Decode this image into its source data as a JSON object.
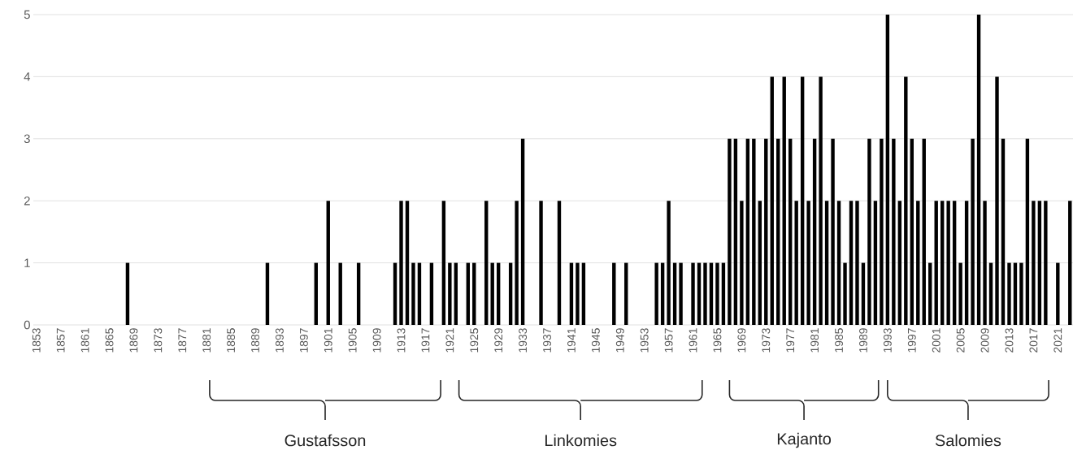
{
  "chart_data": {
    "type": "bar",
    "color": "#000000",
    "x": [
      1853,
      1854,
      1855,
      1856,
      1857,
      1858,
      1859,
      1860,
      1861,
      1862,
      1863,
      1864,
      1865,
      1866,
      1867,
      1868,
      1869,
      1870,
      1871,
      1872,
      1873,
      1874,
      1875,
      1876,
      1877,
      1878,
      1879,
      1880,
      1881,
      1882,
      1883,
      1884,
      1885,
      1886,
      1887,
      1888,
      1889,
      1890,
      1891,
      1892,
      1893,
      1894,
      1895,
      1896,
      1897,
      1898,
      1899,
      1900,
      1901,
      1902,
      1903,
      1904,
      1905,
      1906,
      1907,
      1908,
      1909,
      1910,
      1911,
      1912,
      1913,
      1914,
      1915,
      1916,
      1917,
      1918,
      1919,
      1920,
      1921,
      1922,
      1923,
      1924,
      1925,
      1926,
      1927,
      1928,
      1929,
      1930,
      1931,
      1932,
      1933,
      1934,
      1935,
      1936,
      1937,
      1938,
      1939,
      1940,
      1941,
      1942,
      1943,
      1944,
      1945,
      1946,
      1947,
      1948,
      1949,
      1950,
      1951,
      1952,
      1953,
      1954,
      1955,
      1956,
      1957,
      1958,
      1959,
      1960,
      1961,
      1962,
      1963,
      1964,
      1965,
      1966,
      1967,
      1968,
      1969,
      1970,
      1971,
      1972,
      1973,
      1974,
      1975,
      1976,
      1977,
      1978,
      1979,
      1980,
      1981,
      1982,
      1983,
      1984,
      1985,
      1986,
      1987,
      1988,
      1989,
      1990,
      1991,
      1992,
      1993,
      1994,
      1995,
      1996,
      1997,
      1998,
      1999,
      2000,
      2001,
      2002,
      2003,
      2004,
      2005,
      2006,
      2007,
      2008,
      2009,
      2010,
      2011,
      2012,
      2013,
      2014,
      2015,
      2016,
      2017,
      2018,
      2019,
      2020,
      2021,
      2022,
      2023
    ],
    "values": [
      0,
      0,
      0,
      0,
      0,
      0,
      0,
      0,
      0,
      0,
      0,
      0,
      0,
      0,
      0,
      1,
      0,
      0,
      0,
      0,
      0,
      0,
      0,
      0,
      0,
      0,
      0,
      0,
      0,
      0,
      0,
      0,
      0,
      0,
      0,
      0,
      0,
      0,
      1,
      0,
      0,
      0,
      0,
      0,
      0,
      0,
      1,
      0,
      2,
      0,
      1,
      0,
      0,
      1,
      0,
      0,
      0,
      0,
      0,
      1,
      2,
      2,
      1,
      1,
      0,
      1,
      0,
      2,
      1,
      1,
      0,
      1,
      1,
      0,
      2,
      1,
      1,
      0,
      1,
      2,
      3,
      0,
      0,
      2,
      0,
      0,
      2,
      0,
      1,
      1,
      1,
      0,
      0,
      0,
      0,
      1,
      0,
      1,
      0,
      0,
      0,
      0,
      1,
      1,
      2,
      1,
      1,
      0,
      1,
      1,
      1,
      1,
      1,
      1,
      3,
      3,
      2,
      3,
      3,
      2,
      3,
      4,
      3,
      4,
      3,
      2,
      4,
      2,
      3,
      4,
      2,
      3,
      2,
      1,
      2,
      2,
      1,
      3,
      2,
      3,
      5,
      3,
      2,
      4,
      3,
      2,
      3,
      1,
      2,
      2,
      2,
      2,
      1,
      2,
      3,
      5,
      2,
      1,
      4,
      3,
      1,
      1,
      1,
      3,
      2,
      2,
      2,
      0,
      1,
      0,
      2
    ],
    "xlim": [
      1852.5,
      2023.5
    ],
    "xticks": [
      1853,
      1857,
      1861,
      1865,
      1869,
      1873,
      1877,
      1881,
      1885,
      1889,
      1893,
      1897,
      1901,
      1905,
      1909,
      1913,
      1917,
      1921,
      1925,
      1929,
      1933,
      1937,
      1941,
      1945,
      1949,
      1953,
      1957,
      1961,
      1965,
      1969,
      1973,
      1977,
      1981,
      1985,
      1989,
      1993,
      1997,
      2001,
      2005,
      2009,
      2013,
      2017,
      2021
    ],
    "ylim": [
      0,
      5
    ],
    "yticks": [
      0,
      1,
      2,
      3,
      4,
      5
    ],
    "grid": "y",
    "annotations": [
      "Gustafsson",
      "Linkomies",
      "Kajanto",
      "Salomies"
    ]
  }
}
